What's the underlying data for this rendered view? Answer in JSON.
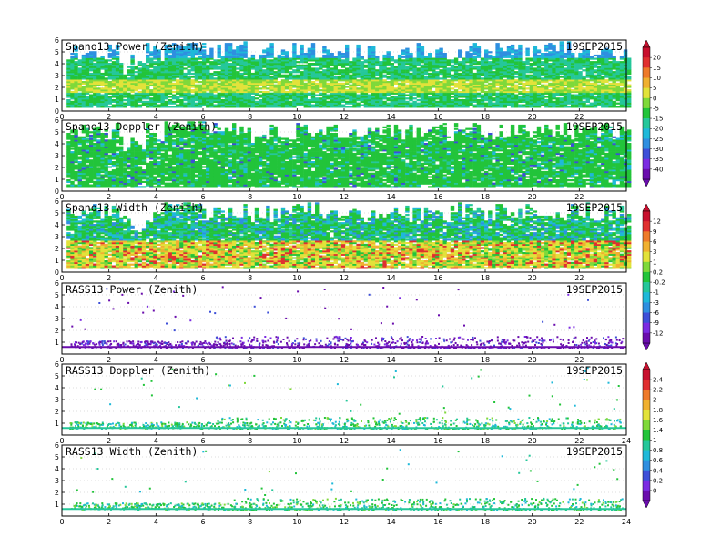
{
  "figure_label": "",
  "panels": [
    {
      "title": "Spano13 Power (Zenith)",
      "date": "19SEP2015"
    },
    {
      "title": "Spano13 Doppler (Zenith)",
      "date": "19SEP2015"
    },
    {
      "title": "Spano13 Width (Zenith)",
      "date": "19SEP2015"
    },
    {
      "title": "RASS13 Power (Zenith)",
      "date": "19SEP2015"
    },
    {
      "title": "RASS13 Doppler (Zenith)",
      "date": "19SEP2015"
    },
    {
      "title": "RASS13 Width (Zenith)",
      "date": "19SEP2015"
    }
  ],
  "colorbars": [
    {
      "ticks": [
        "20",
        "15",
        "10",
        "5",
        "0",
        "-5",
        "-15",
        "-20",
        "-25",
        "-30",
        "-35",
        "-40"
      ]
    },
    {
      "ticks": [
        "12",
        "9",
        "6",
        "3",
        "1",
        "0.2",
        "-0.2",
        "-1",
        "-3",
        "-6",
        "-9",
        "-12"
      ]
    },
    {
      "ticks": [
        "2.4",
        "2.2",
        "2",
        "1.8",
        "1.6",
        "1.4",
        "1",
        "0.8",
        "0.6",
        "0.4",
        "0.2",
        "0"
      ]
    }
  ],
  "palette": [
    "#6a0dad",
    "#7b2be2",
    "#3d4fd8",
    "#2f8fe0",
    "#1fb9d9",
    "#25c79a",
    "#22c43a",
    "#7fd93a",
    "#e2e23a",
    "#f0b030",
    "#ee7a2a",
    "#e03030",
    "#c8102e"
  ],
  "chart_data": [
    {
      "type": "heatmap",
      "title": "Spano13 Power (Zenith)",
      "annotation": "19SEP2015",
      "x_range": [
        0,
        24
      ],
      "y_range": [
        0,
        6
      ],
      "xticks": [
        0,
        2,
        4,
        6,
        8,
        10,
        12,
        14,
        16,
        18,
        20,
        22
      ],
      "yticks": [
        0,
        1,
        2,
        3,
        4,
        5,
        6
      ],
      "colorbar_ticks": [
        20,
        15,
        10,
        5,
        0,
        -5,
        -15,
        -20,
        -25,
        -30,
        -35,
        -40
      ],
      "observed_layers": [
        {
          "height": [
            1.5,
            2.5
          ],
          "value_range": [
            0,
            10
          ]
        },
        {
          "height": [
            2.5,
            4.5
          ],
          "value_range": [
            -20,
            -10
          ]
        },
        {
          "height": [
            4.5,
            5.8
          ],
          "value_range": [
            -35,
            -25
          ]
        }
      ]
    },
    {
      "type": "heatmap",
      "title": "Spano13 Doppler (Zenith)",
      "annotation": "19SEP2015",
      "x_range": [
        0,
        24
      ],
      "y_range": [
        0,
        6
      ],
      "xticks": [
        0,
        2,
        4,
        6,
        8,
        10,
        12,
        14,
        16,
        18,
        20,
        22
      ],
      "yticks": [
        0,
        1,
        2,
        3,
        4,
        5,
        6
      ],
      "colorbar_ticks": [
        20,
        15,
        10,
        5,
        0,
        -5,
        -15,
        -20,
        -25,
        -30,
        -35,
        -40
      ],
      "observed_layers": [
        {
          "height": [
            0.5,
            5.8
          ],
          "value_range": [
            -20,
            -15
          ]
        }
      ]
    },
    {
      "type": "heatmap",
      "title": "Spano13 Width (Zenith)",
      "annotation": "19SEP2015",
      "x_range": [
        0,
        24
      ],
      "y_range": [
        0,
        6
      ],
      "xticks": [
        0,
        2,
        4,
        6,
        8,
        10,
        12,
        14,
        16,
        18,
        20,
        22
      ],
      "yticks": [
        0,
        1,
        2,
        3,
        4,
        5,
        6
      ],
      "colorbar_ticks": [
        12,
        9,
        6,
        3,
        1,
        0.2,
        -0.2,
        -1,
        -3,
        -6,
        -9,
        -12
      ],
      "observed_layers": [
        {
          "height": [
            0.5,
            2.5
          ],
          "value_range": [
            1,
            12
          ]
        },
        {
          "height": [
            2.5,
            5.8
          ],
          "value_range": [
            -1,
            1
          ]
        }
      ]
    },
    {
      "type": "heatmap",
      "title": "RASS13 Power (Zenith)",
      "annotation": "19SEP2015",
      "x_range": [
        0,
        24
      ],
      "y_range": [
        0,
        6
      ],
      "xticks": [
        0,
        2,
        4,
        6,
        8,
        10,
        12,
        14,
        16,
        18,
        20,
        22
      ],
      "yticks": [
        1,
        2,
        3,
        4,
        5,
        6
      ],
      "colorbar_ticks": [
        12,
        9,
        6,
        3,
        1,
        0.2,
        -0.2,
        -1,
        -3,
        -6,
        -9,
        -12
      ],
      "observed_layers": [
        {
          "height": [
            0.5,
            1.5
          ],
          "value_range": [
            -12,
            -3
          ]
        }
      ]
    },
    {
      "type": "heatmap",
      "title": "RASS13 Doppler (Zenith)",
      "annotation": "19SEP2015",
      "x_range": [
        0,
        24
      ],
      "y_range": [
        0,
        6
      ],
      "xticks": [
        0,
        2,
        4,
        6,
        8,
        10,
        12,
        14,
        16,
        18,
        20,
        22,
        24
      ],
      "yticks": [
        1,
        2,
        3,
        4,
        5,
        6
      ],
      "colorbar_ticks": [
        2.4,
        2.2,
        2,
        1.8,
        1.6,
        1.4,
        1,
        0.8,
        0.6,
        0.4,
        0.2,
        0
      ],
      "observed_layers": [
        {
          "height": [
            0.5,
            1.6
          ],
          "value_range": [
            0.6,
            1.4
          ]
        }
      ]
    },
    {
      "type": "heatmap",
      "title": "RASS13 Width (Zenith)",
      "annotation": "19SEP2015",
      "x_range": [
        0,
        24
      ],
      "y_range": [
        0,
        6
      ],
      "xticks": [
        0,
        2,
        4,
        6,
        8,
        10,
        12,
        14,
        16,
        18,
        20,
        22,
        24
      ],
      "yticks": [
        1,
        2,
        3,
        4,
        5,
        6
      ],
      "colorbar_ticks": [
        2.4,
        2.2,
        2,
        1.8,
        1.6,
        1.4,
        1,
        0.8,
        0.6,
        0.4,
        0.2,
        0
      ],
      "observed_layers": [
        {
          "height": [
            0.5,
            1.6
          ],
          "value_range": [
            0.6,
            1.4
          ]
        }
      ]
    }
  ]
}
